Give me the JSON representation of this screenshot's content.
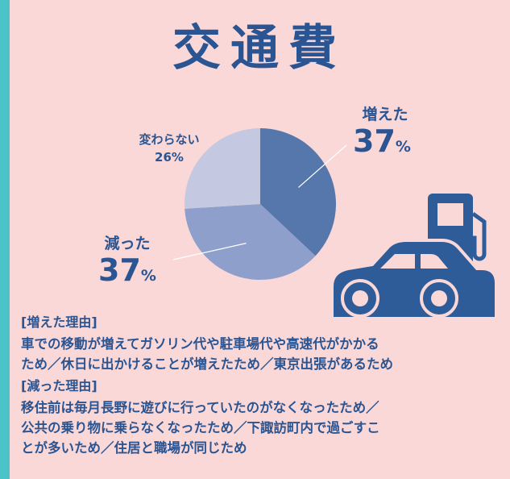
{
  "chart_data": {
    "type": "pie",
    "title": "交通費",
    "categories": [
      "増えた",
      "減った",
      "変わらない"
    ],
    "values": [
      37,
      37,
      26
    ],
    "unit": "%",
    "colors": [
      "#5677ab",
      "#8d9fca",
      "#c4c9e1"
    ]
  },
  "notes": [
    {
      "heading": "[増えた理由]",
      "lines": [
        "車での移動が増えてガソリン代や駐車場代や高速代がかかる",
        "ため／休日に出かけることが増えたため／東京出張があるため"
      ]
    },
    {
      "heading": "[減った理由]",
      "lines": [
        "移住前は毎月長野に遊びに行っていたのがなくなったため／",
        "公共の乗り物に乗らなくなったため／下諏訪町内で過ごすこ",
        "とが多いため／住居と職場が同じため"
      ]
    }
  ]
}
